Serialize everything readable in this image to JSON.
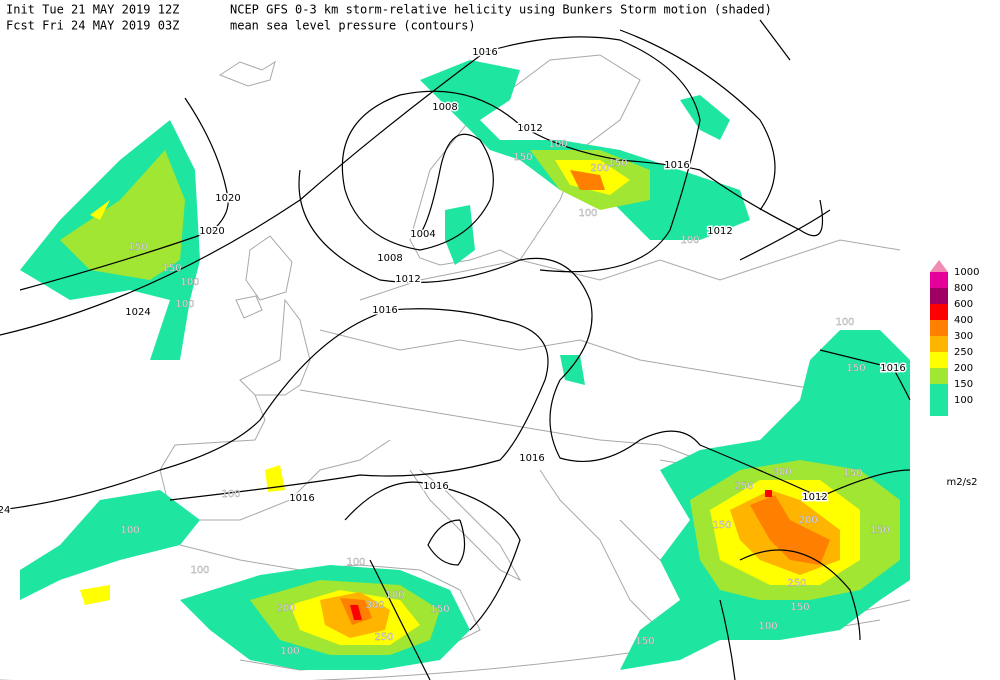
{
  "header": {
    "init": "Init  Tue 21 MAY 2019 12Z",
    "forecast": "Fcst Fri 24 MAY 2019 03Z",
    "shaded_field": "NCEP GFS 0-3 km storm-relative helicity using Bunkers Storm motion (shaded)",
    "contour_field": "mean sea level pressure (contours)"
  },
  "legend": {
    "levels": [
      1000,
      800,
      600,
      400,
      300,
      250,
      200,
      150,
      100
    ],
    "unit": "m2/s2"
  },
  "contour_labels": [
    "1016",
    "1008",
    "1012",
    "1016",
    "1012",
    "1020",
    "1020",
    "1024",
    "1004",
    "1008",
    "1012",
    "1016",
    "1016",
    "1016",
    "1016",
    "1012",
    "1016",
    "24"
  ],
  "shading_labels": [
    "150",
    "150",
    "100",
    "100",
    "100",
    "100",
    "150",
    "200",
    "150",
    "100",
    "100",
    "150",
    "300",
    "250",
    "150",
    "200",
    "150",
    "250",
    "150",
    "100",
    "150",
    "100",
    "100",
    "100",
    "200",
    "300",
    "100",
    "150",
    "250",
    "100",
    "100",
    "150"
  ]
}
